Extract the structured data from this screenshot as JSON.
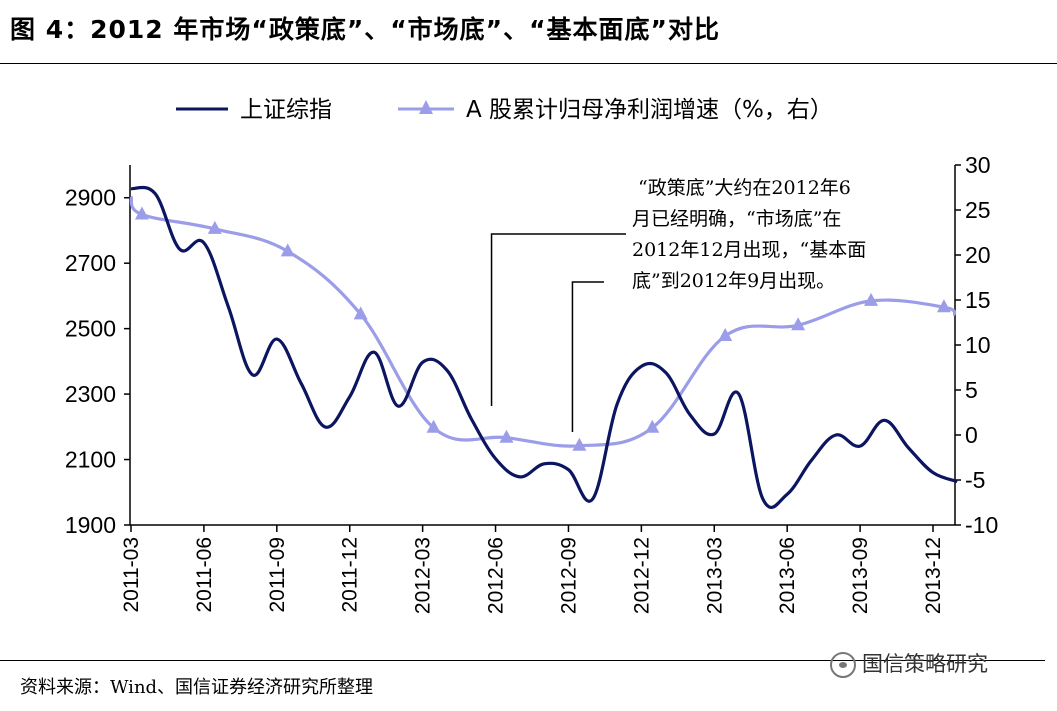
{
  "header": {
    "title": "图 4：2012 年市场“政策底”、“市场底”、“基本面底”对比"
  },
  "footer": {
    "source": "资料来源：Wind、国信证券经济研究所整理",
    "watermark": "国信策略研究"
  },
  "chart_data": {
    "type": "line",
    "title": "",
    "xlabel": "",
    "ylabel": "",
    "legend_position": "top",
    "x_ticks": [
      "2011-03",
      "2011-06",
      "2011-09",
      "2011-12",
      "2012-03",
      "2012-06",
      "2012-09",
      "2012-12",
      "2013-03",
      "2013-06",
      "2013-09",
      "2013-12"
    ],
    "y_left": {
      "ticks": [
        1900,
        2100,
        2300,
        2500,
        2700,
        2900
      ],
      "range": [
        1900,
        3000
      ]
    },
    "y_right": {
      "ticks": [
        -10,
        -5,
        0,
        5,
        10,
        15,
        20,
        25,
        30
      ],
      "range": [
        -10,
        30
      ]
    },
    "series": [
      {
        "name": "上证综指",
        "axis": "left",
        "color": "#0b1560",
        "x_months": [
          0,
          1,
          2,
          3,
          4,
          5,
          6,
          7,
          8,
          9,
          10,
          11,
          12,
          13,
          14,
          15,
          16,
          17,
          18,
          19,
          20,
          21,
          22,
          23,
          24,
          25,
          26,
          27,
          28,
          29,
          30,
          31,
          32,
          33,
          34
        ],
        "values": [
          2928,
          2912,
          2743,
          2762,
          2568,
          2359,
          2468,
          2333,
          2199,
          2292,
          2428,
          2263,
          2397,
          2373,
          2225,
          2103,
          2047,
          2087,
          2069,
          1980,
          2269,
          2385,
          2366,
          2237,
          2178,
          2301,
          1979,
          1994,
          2098,
          2175,
          2141,
          2220,
          2135,
          2060,
          2033
        ]
      },
      {
        "name": "A 股累计归母净利润增速（%，右）",
        "axis": "right",
        "color": "#9b9de8",
        "marker": "triangle",
        "x_quarters": [
          0,
          1,
          2,
          3,
          4,
          5,
          6,
          7,
          8,
          9,
          10,
          11
        ],
        "values": [
          24.5,
          22.9,
          20.4,
          13.4,
          0.8,
          -0.3,
          -1.2,
          0.8,
          11.0,
          12.2,
          14.9,
          14.2
        ],
        "start_value": 26.5,
        "end_value": 13.3
      }
    ],
    "annotation": {
      "lines": [
        "“政策底”大约在2012年6",
        "月已经明确，“市场底”在",
        "2012年12月出现，“基本面",
        "底”到2012年9月出现。"
      ],
      "pointers": [
        "2012-06",
        "2012-09"
      ]
    }
  }
}
